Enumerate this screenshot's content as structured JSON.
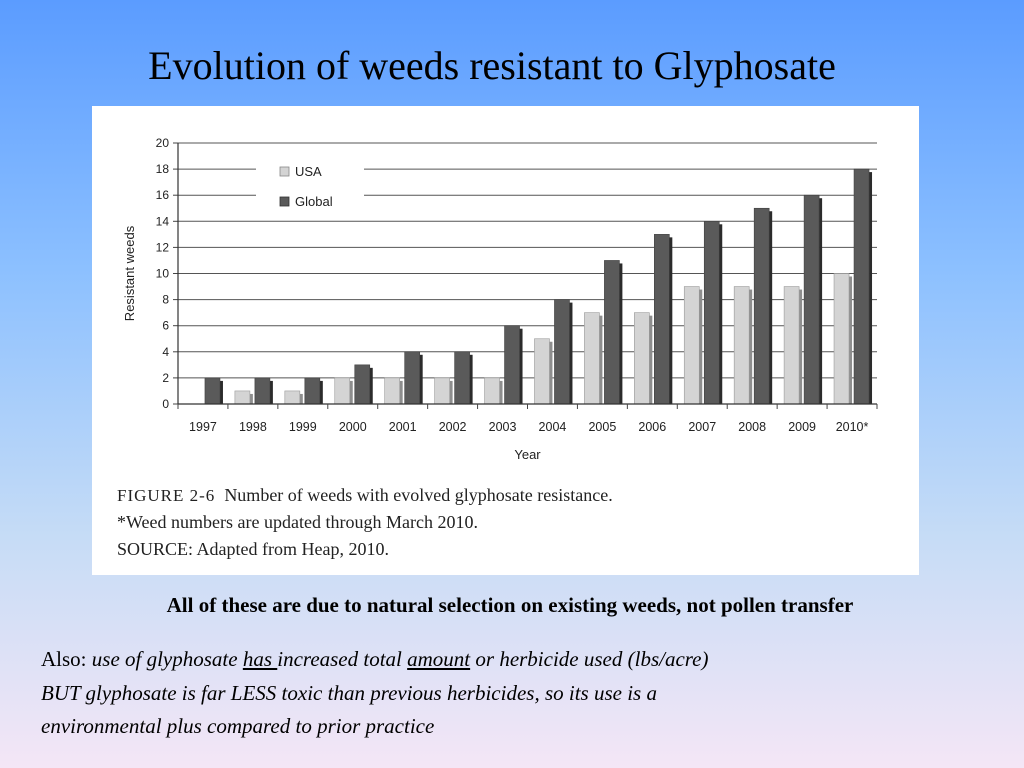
{
  "slide": {
    "title": "Evolution of weeds resistant to Glyphosate",
    "figure_caption": {
      "label": "FIGURE 2-6",
      "text": "Number of weeds with evolved glyphosate resistance.",
      "note": "*Weed numbers are updated through March 2010.",
      "source": "SOURCE: Adapted from Heap, 2010."
    },
    "bold_statement": "All of these are due to natural selection on existing weeds, not pollen transfer",
    "body": {
      "prefix": "Also: ",
      "p1": "use of glyphosate ",
      "u1": "has ",
      "p2": "increased total ",
      "u2": "amount",
      "p3": " or herbicide used (lbs/acre)",
      "line2": "BUT  glyphosate is far LESS toxic than previous herbicides, so its use is a",
      "line3": "environmental plus compared to prior practice"
    }
  },
  "chart_data": {
    "type": "bar",
    "categories": [
      "1997",
      "1998",
      "1999",
      "2000",
      "2001",
      "2002",
      "2003",
      "2004",
      "2005",
      "2006",
      "2007",
      "2008",
      "2009",
      "2010*"
    ],
    "series": [
      {
        "name": "USA",
        "values": [
          0,
          1,
          1,
          2,
          2,
          2,
          2,
          5,
          7,
          7,
          9,
          9,
          9,
          10
        ],
        "color": "#d4d4d4"
      },
      {
        "name": "Global",
        "values": [
          2,
          2,
          2,
          3,
          4,
          4,
          6,
          8,
          11,
          13,
          14,
          15,
          16,
          18
        ],
        "color": "#5a5a5a"
      }
    ],
    "xlabel": "Year",
    "ylabel": "Resistant weeds",
    "ylim": [
      0,
      20
    ],
    "yticks": [
      0,
      2,
      4,
      6,
      8,
      10,
      12,
      14,
      16,
      18,
      20
    ],
    "grid": true,
    "legend_position": "top-left"
  }
}
